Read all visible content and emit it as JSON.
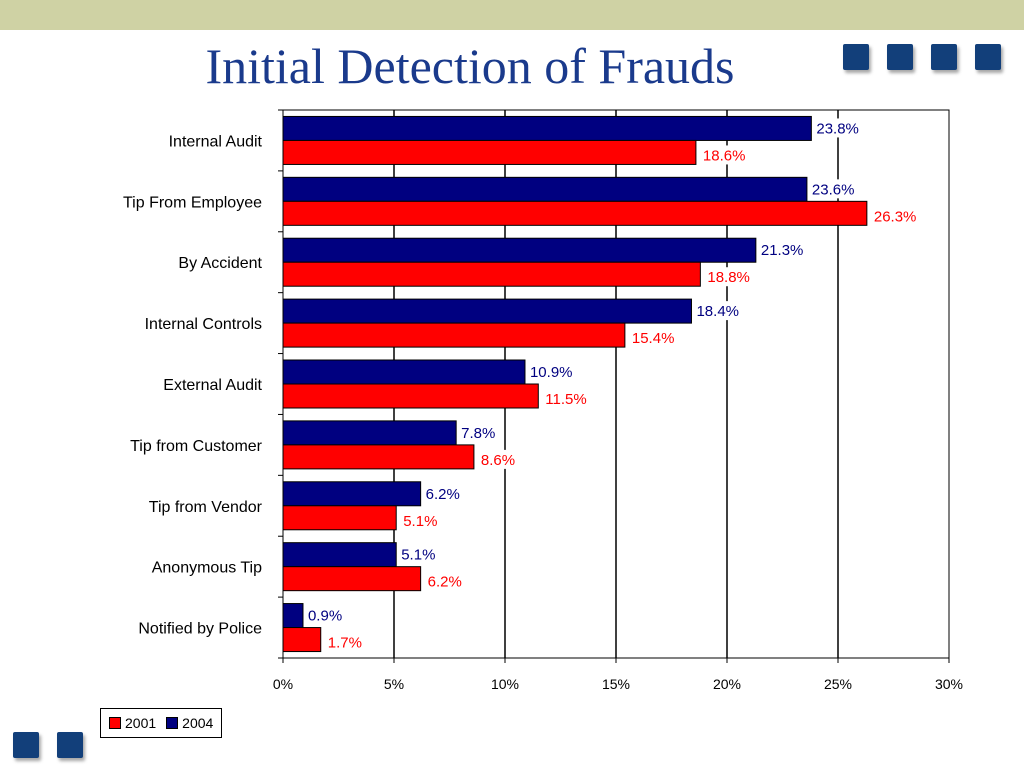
{
  "slide": {
    "title": "Initial Detection of Frauds"
  },
  "colors": {
    "band": "#cfd2a4",
    "title": "#1a3a8c",
    "decoration": "#123f7a",
    "series_2001": "#ff0000",
    "series_2004": "#000080"
  },
  "chart_data": {
    "type": "bar",
    "orientation": "horizontal",
    "categories": [
      "Internal Audit",
      "Tip From Employee",
      "By Accident",
      "Internal Controls",
      "External Audit",
      "Tip from Customer",
      "Tip from Vendor",
      "Anonymous Tip",
      "Notified by Police"
    ],
    "series": [
      {
        "name": "2004",
        "color": "#000080",
        "values": [
          23.8,
          23.6,
          21.3,
          18.4,
          10.9,
          7.8,
          6.2,
          5.1,
          0.9
        ],
        "labels": [
          "23.8%",
          "23.6%",
          "21.3%",
          "18.4%",
          "10.9%",
          "7.8%",
          "6.2%",
          "5.1%",
          "0.9%"
        ]
      },
      {
        "name": "2001",
        "color": "#ff0000",
        "values": [
          18.6,
          26.3,
          18.8,
          15.4,
          11.5,
          8.6,
          5.1,
          6.2,
          1.7
        ],
        "labels": [
          "18.6%",
          "26.3%",
          "18.8%",
          "15.4%",
          "11.5%",
          "8.6%",
          "5.1%",
          "6.2%",
          "1.7%"
        ]
      }
    ],
    "xlim": [
      0,
      30
    ],
    "xticks": [
      0,
      5,
      10,
      15,
      20,
      25,
      30
    ],
    "xtick_labels": [
      "0%",
      "5%",
      "10%",
      "15%",
      "20%",
      "25%",
      "30%"
    ],
    "grid": true,
    "legend": {
      "position": "bottom-left",
      "entries": [
        {
          "name": "2001",
          "color": "#ff0000"
        },
        {
          "name": "2004",
          "color": "#000080"
        }
      ]
    }
  }
}
